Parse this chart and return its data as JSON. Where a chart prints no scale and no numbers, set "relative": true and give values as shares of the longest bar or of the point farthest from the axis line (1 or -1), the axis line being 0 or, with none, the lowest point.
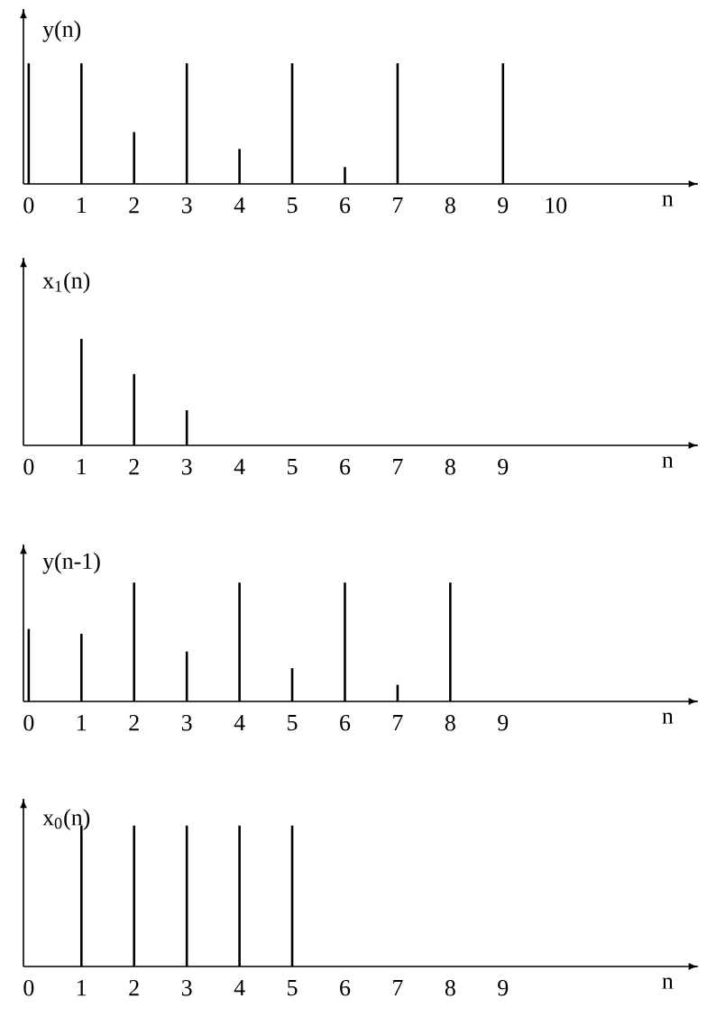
{
  "chart_data": [
    {
      "type": "bar",
      "relative": true,
      "ylabel": "y(n)",
      "xlabel": "n",
      "x": [
        0,
        1,
        2,
        3,
        4,
        5,
        6,
        7,
        8,
        9,
        10
      ],
      "xlim": [
        -0.1,
        12.7
      ],
      "xticks": [
        0,
        1,
        2,
        3,
        4,
        5,
        6,
        7,
        8,
        9,
        10
      ],
      "series": [
        {
          "color": "#000000",
          "values": [
            1,
            1,
            0.43,
            1,
            0.29,
            1,
            0.14,
            1,
            0,
            1,
            0
          ]
        }
      ]
    },
    {
      "type": "bar",
      "relative": true,
      "ylabel": "x$_{1}$(n)",
      "xlabel": "n",
      "x": [
        0,
        1,
        2,
        3,
        4,
        5,
        6,
        7,
        8,
        9
      ],
      "xlim": [
        -0.1,
        12.7
      ],
      "xticks": [
        0,
        1,
        2,
        3,
        4,
        5,
        6,
        7,
        8,
        9
      ],
      "series": [
        {
          "color": "#000000",
          "values": [
            0,
            1,
            0.67,
            0.33,
            0,
            0,
            0,
            0,
            0,
            0
          ]
        }
      ]
    },
    {
      "type": "bar",
      "relative": true,
      "ylabel": "y(n-1)",
      "xlabel": "n",
      "x": [
        0,
        1,
        2,
        3,
        4,
        5,
        6,
        7,
        8,
        9
      ],
      "xlim": [
        -0.1,
        12.7
      ],
      "xticks": [
        0,
        1,
        2,
        3,
        4,
        5,
        6,
        7,
        8,
        9
      ],
      "series": [
        {
          "color": "#000000",
          "values": [
            0.61,
            0.57,
            1,
            0.42,
            1,
            0.28,
            1,
            0.14,
            1,
            0
          ]
        }
      ]
    },
    {
      "type": "bar",
      "relative": true,
      "ylabel": "x$_{0}$(n)",
      "xlabel": "n",
      "x": [
        0,
        1,
        2,
        3,
        4,
        5,
        6,
        7,
        8,
        9
      ],
      "xlim": [
        -0.1,
        12.7
      ],
      "xticks": [
        0,
        1,
        2,
        3,
        4,
        5,
        6,
        7,
        8,
        9
      ],
      "series": [
        {
          "color": "#000000",
          "values": [
            0,
            1,
            1,
            1,
            1,
            1,
            0,
            0,
            0,
            0
          ]
        }
      ]
    }
  ]
}
